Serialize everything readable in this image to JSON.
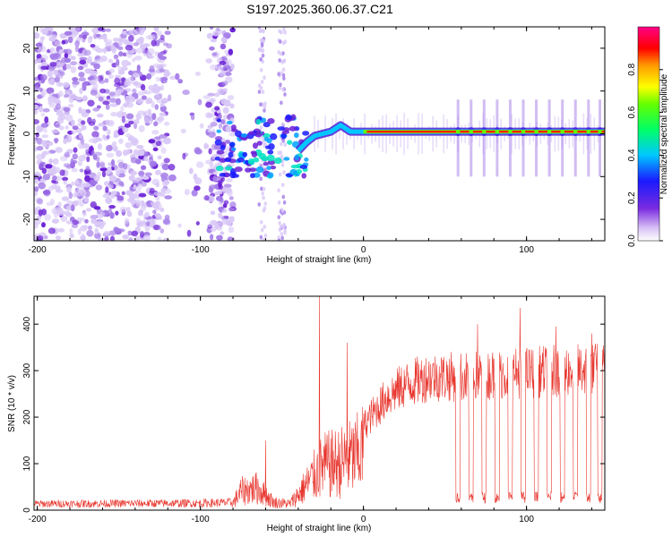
{
  "title": "S197.2025.360.06.37.C21",
  "colors": {
    "snr_line": "#e8362e",
    "axis": "#000000",
    "scatter_light": "#d9c8f7",
    "scatter_mid": "#a47ce8",
    "scatter_dark": "#6a1fd6"
  },
  "chart_data": [
    {
      "type": "heatmap",
      "title": "",
      "xlabel": "Height of straight line (km)",
      "ylabel": "Frequency (Hz)",
      "xlim": [
        -202,
        148
      ],
      "ylim": [
        -25,
        25
      ],
      "x_ticks": [
        -200,
        -100,
        0,
        100
      ],
      "y_ticks": [
        -20,
        -10,
        0,
        10,
        20
      ],
      "colorbar": {
        "label": "Normalized spectral amplitude",
        "range": [
          0,
          1
        ],
        "ticks": [
          "0.0",
          "0.2",
          "0.4",
          "0.6",
          "0.8"
        ],
        "tick_values": [
          0.0,
          0.2,
          0.4,
          0.6,
          0.8
        ]
      },
      "regions": [
        {
          "name": "noise",
          "x": [
            -202,
            -80
          ],
          "freq_range": [
            -25,
            25
          ],
          "amplitude": 0.1
        },
        {
          "name": "transition",
          "x": [
            -90,
            -35
          ],
          "freq_center": -3,
          "amplitude": 0.35
        },
        {
          "name": "tone",
          "x": [
            -35,
            148
          ],
          "freq_center": 0.5,
          "amplitude": 1.0
        }
      ],
      "tone_trace": [
        [
          -40,
          -4
        ],
        [
          -35,
          -2
        ],
        [
          -30,
          -0.5
        ],
        [
          -20,
          0.5
        ],
        [
          -14,
          2
        ],
        [
          -8,
          0.5
        ],
        [
          0,
          0.5
        ],
        [
          148,
          0.5
        ]
      ],
      "dropouts_x": [
        58,
        66,
        74,
        82,
        90,
        98,
        106,
        114,
        122,
        130,
        138,
        145
      ]
    },
    {
      "type": "line",
      "title": "",
      "xlabel": "Height of straight line (km)",
      "ylabel": "SNR (10 * v/v)",
      "xlim": [
        -202,
        148
      ],
      "ylim": [
        0,
        460
      ],
      "x_ticks": [
        -200,
        -100,
        0,
        100
      ],
      "y_ticks": [
        0,
        100,
        200,
        300,
        400
      ],
      "series": [
        {
          "name": "SNR",
          "envelope": [
            [
              -202,
              18
            ],
            [
              -100,
              20
            ],
            [
              -80,
              22
            ],
            [
              -75,
              60
            ],
            [
              -65,
              70
            ],
            [
              -55,
              25
            ],
            [
              -45,
              20
            ],
            [
              -35,
              80
            ],
            [
              -25,
              140
            ],
            [
              -15,
              150
            ],
            [
              -5,
              170
            ],
            [
              5,
              220
            ],
            [
              15,
              265
            ],
            [
              25,
              290
            ],
            [
              40,
              310
            ],
            [
              60,
              310
            ],
            [
              100,
              320
            ],
            [
              148,
              330
            ]
          ],
          "spikes": [
            [
              -27,
              460
            ],
            [
              -60,
              150
            ],
            [
              -10,
              360
            ],
            [
              70,
              400
            ],
            [
              96,
              435
            ],
            [
              118,
              395
            ],
            [
              140,
              380
            ]
          ],
          "dropout_x": [
            58,
            66,
            74,
            82,
            90,
            98,
            106,
            114,
            122,
            130,
            138,
            145
          ],
          "dropout_floor": 15
        }
      ]
    }
  ]
}
